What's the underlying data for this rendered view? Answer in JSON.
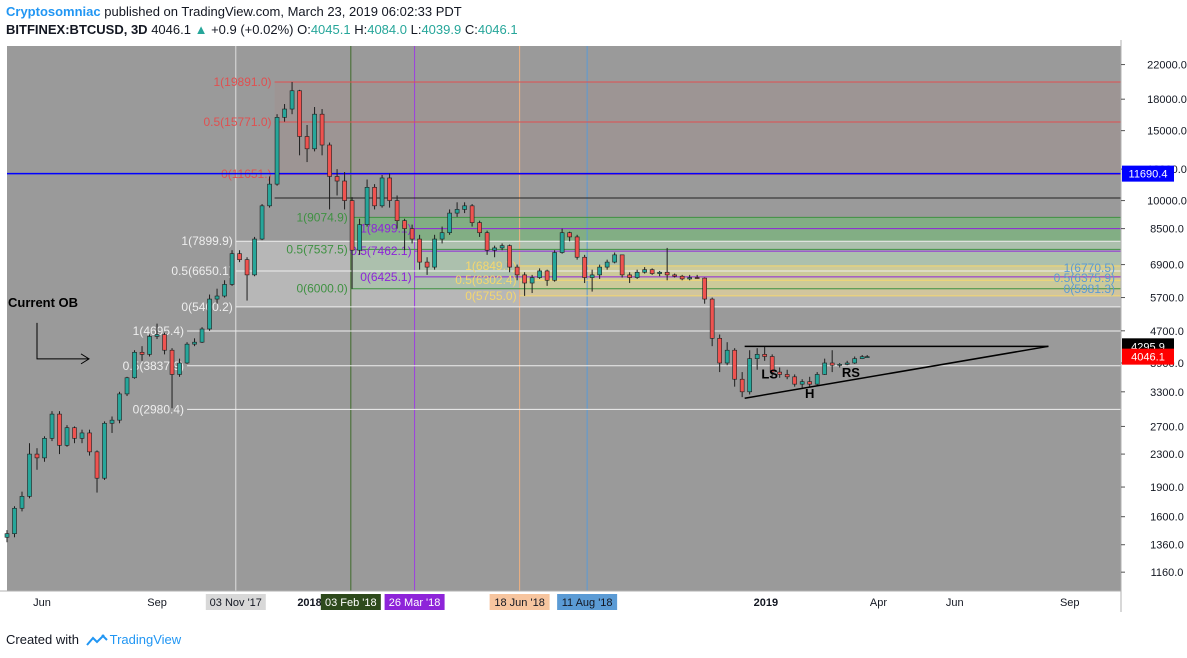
{
  "header": {
    "author": "Cryptosomniac",
    "published_text": "published on TradingView.com, March 23, 2019 06:02:33 PDT",
    "symbol": "BITFINEX:BTCUSD, 3D",
    "last": "4046.1",
    "change_arrow": "▲",
    "change": "+0.9 (+0.02%)",
    "o_label": "O:",
    "o_value": "4045.1",
    "h_label": "H:",
    "h_value": "4084.0",
    "l_label": "L:",
    "l_value": "4039.9",
    "c_label": "C:",
    "c_value": "4046.1"
  },
  "footer": {
    "created_with": "Created with",
    "brand": "TradingView"
  },
  "colors": {
    "pane_bg": "#9a9a9a",
    "axis_bg": "#ffffff",
    "up": "#26a69a",
    "down": "#ef5350",
    "fib_red": "#e05050",
    "fib_green": "#3f9142",
    "fib_purple": "#8e24d9",
    "fib_yellow": "#f5d76e",
    "fib_blue": "#5b9bd5",
    "fib_white": "#eeeeee",
    "blue_line": "#0000ff"
  },
  "chart_data": {
    "type": "candlestick",
    "y_scale": "log",
    "ylim": [
      1040,
      24500
    ],
    "y_ticks": [
      "22000.0",
      "18000.0",
      "15000.0",
      "12000.0",
      "10000.0",
      "8500.0",
      "6900.0",
      "5700.0",
      "4700.0",
      "3900.0",
      "3300.0",
      "2700.0",
      "2300.0",
      "1900.0",
      "1600.0",
      "1360.0",
      "1160.0"
    ],
    "x_range": [
      "2017-05-04",
      "2019-10-12"
    ],
    "x_ticks": [
      {
        "label": "Jun",
        "date": "2017-06-01"
      },
      {
        "label": "Sep",
        "date": "2017-09-01"
      },
      {
        "label": "2018",
        "date": "2018-01-01"
      },
      {
        "label": "p",
        "date": "2018-09-01"
      },
      {
        "label": "2019",
        "date": "2019-01-01"
      },
      {
        "label": "Apr",
        "date": "2019-04-01"
      },
      {
        "label": "Jun",
        "date": "2019-06-01"
      },
      {
        "label": "Sep",
        "date": "2019-09-01"
      }
    ],
    "date_markers": [
      {
        "label": "03 Nov '17",
        "date": "2017-11-03",
        "bg": "#d8d8d8",
        "fg": "#131722",
        "line": "#e0e0e0"
      },
      {
        "label": "03 Feb '18",
        "date": "2018-02-03",
        "bg": "#2e4a1c",
        "fg": "#ffffff",
        "line": "#3f6b2a"
      },
      {
        "label": "26 Mar '18",
        "date": "2018-03-26",
        "bg": "#8e24d9",
        "fg": "#ffffff",
        "line": "#9c3de0"
      },
      {
        "label": "18 Jun '18",
        "date": "2018-06-18",
        "bg": "#f7c59f",
        "fg": "#131722",
        "line": "#f0b080"
      },
      {
        "label": "11 Aug '18",
        "date": "2018-08-11",
        "bg": "#5b9bd5",
        "fg": "#131722",
        "line": "#5b9bd5"
      }
    ],
    "price_tags": [
      {
        "value": 11690.4,
        "label": "11690.4",
        "bg": "#0000ff",
        "fg": "#ffffff"
      },
      {
        "value": 4295.9,
        "label": "4295.9",
        "bg": "#000000",
        "fg": "#ffffff"
      },
      {
        "value": 4046.1,
        "label": "4046.1",
        "bg": "#ff0000",
        "fg": "#ffffff"
      }
    ],
    "fib_sets": [
      {
        "color_key": "fib_red",
        "start": "2017-12-04",
        "end": "2019-10-12",
        "fill": "",
        "levels": [
          {
            "label": "1(19891.0)",
            "value": 19891.0
          },
          {
            "label": "0.5(15771.0)",
            "value": 15771.0
          },
          {
            "label": "0(11651.)",
            "value": 11651.0
          }
        ]
      },
      {
        "color_key": "fib_green",
        "start": "2018-02-03",
        "end": "2019-10-12",
        "fill": "#6fbf73",
        "levels": [
          {
            "label": "1(9074.9)",
            "value": 9074.9
          },
          {
            "label": "0.5(7537.5)",
            "value": 7537.5
          },
          {
            "label": "0(6000.0)",
            "value": 6000.0
          }
        ]
      },
      {
        "color_key": "fib_white",
        "start": "2017-11-03",
        "end": "2019-10-12",
        "fill": "#cfcfcf",
        "levels": [
          {
            "label": "1(7899.9)",
            "value": 7899.9
          },
          {
            "label": "0.5(6650.1)",
            "value": 6650.1
          },
          {
            "label": "0(5400.2)",
            "value": 5400.2
          }
        ]
      },
      {
        "color_key": "fib_purple",
        "start": "2018-03-26",
        "end": "2019-10-12",
        "fill": "",
        "levels": [
          {
            "label": "1(8499.1)",
            "value": 8499.1
          },
          {
            "label": "0.5(7462.1)",
            "value": 7462.1
          },
          {
            "label": "0(6425.1)",
            "value": 6425.1
          }
        ]
      },
      {
        "color_key": "fib_yellow",
        "start": "2018-06-18",
        "end": "2019-10-12",
        "fill": "#e8d28a",
        "levels": [
          {
            "label": "1(6849.7)",
            "value": 6849.7
          },
          {
            "label": "0.5(6302.4)",
            "value": 6302.4
          },
          {
            "label": "0(5755.0)",
            "value": 5755.0
          }
        ]
      },
      {
        "color_key": "fib_white",
        "start": "2017-09-25",
        "end": "2019-10-12",
        "fill": "",
        "levels": [
          {
            "label": "1(4695.4)",
            "value": 4695.4
          },
          {
            "label": "0.5(3837.9)",
            "value": 3837.9
          },
          {
            "label": "0(2980.4)",
            "value": 2980.4
          }
        ]
      }
    ],
    "right_fib_labels": [
      {
        "label": "1(6770.5)",
        "value": 6770.5
      },
      {
        "label": "0.5(6375.9)",
        "value": 6375.9
      },
      {
        "label": "0(5981.3)",
        "value": 5981.3
      }
    ],
    "annotations": [
      {
        "text": "Current OB",
        "date": "2017-05-04",
        "value": 5400
      },
      {
        "text": "LS",
        "date": "2019-01-04",
        "value": 3560
      },
      {
        "text": "H",
        "date": "2019-02-05",
        "value": 3180
      },
      {
        "text": "RS",
        "date": "2019-03-10",
        "value": 3600
      }
    ],
    "trendlines": [
      {
        "from": [
          "2018-12-15",
          4295.9
        ],
        "to": [
          "2019-08-15",
          4295.9
        ]
      },
      {
        "from": [
          "2018-12-15",
          3180
        ],
        "to": [
          "2019-08-15",
          4295.9
        ]
      }
    ],
    "ohlc": [
      [
        "2017-05-04",
        1420,
        1480,
        1380,
        1450
      ],
      [
        "2017-05-10",
        1450,
        1700,
        1420,
        1680
      ],
      [
        "2017-05-16",
        1680,
        1850,
        1650,
        1800
      ],
      [
        "2017-05-22",
        1800,
        2450,
        1780,
        2300
      ],
      [
        "2017-05-28",
        2300,
        2380,
        2100,
        2250
      ],
      [
        "2017-06-03",
        2250,
        2550,
        2200,
        2520
      ],
      [
        "2017-06-09",
        2520,
        2950,
        2480,
        2900
      ],
      [
        "2017-06-15",
        2900,
        2950,
        2300,
        2420
      ],
      [
        "2017-06-21",
        2420,
        2720,
        2400,
        2680
      ],
      [
        "2017-06-27",
        2680,
        2700,
        2450,
        2520
      ],
      [
        "2017-07-03",
        2520,
        2650,
        2450,
        2600
      ],
      [
        "2017-07-09",
        2600,
        2650,
        2280,
        2330
      ],
      [
        "2017-07-15",
        2330,
        2350,
        1840,
        2000
      ],
      [
        "2017-07-21",
        2000,
        2780,
        1980,
        2750
      ],
      [
        "2017-07-27",
        2750,
        2860,
        2600,
        2800
      ],
      [
        "2017-08-02",
        2800,
        3300,
        2750,
        3260
      ],
      [
        "2017-08-08",
        3260,
        3600,
        3220,
        3580
      ],
      [
        "2017-08-14",
        3580,
        4200,
        3560,
        4150
      ],
      [
        "2017-08-20",
        4150,
        4300,
        3950,
        4100
      ],
      [
        "2017-08-26",
        4100,
        4600,
        4050,
        4550
      ],
      [
        "2017-09-01",
        4550,
        4900,
        4480,
        4600
      ],
      [
        "2017-09-07",
        4600,
        4650,
        4100,
        4200
      ],
      [
        "2017-09-13",
        4200,
        4250,
        3000,
        3650
      ],
      [
        "2017-09-19",
        3650,
        4000,
        3600,
        3900
      ],
      [
        "2017-09-25",
        3900,
        4400,
        3880,
        4350
      ],
      [
        "2017-10-01",
        4350,
        4500,
        4300,
        4400
      ],
      [
        "2017-10-07",
        4400,
        4800,
        4380,
        4750
      ],
      [
        "2017-10-13",
        4750,
        5800,
        4700,
        5650
      ],
      [
        "2017-10-19",
        5650,
        6000,
        5500,
        5750
      ],
      [
        "2017-10-25",
        5750,
        6300,
        5700,
        6150
      ],
      [
        "2017-10-31",
        6150,
        7500,
        6100,
        7350
      ],
      [
        "2017-11-06",
        7350,
        7500,
        7000,
        7100
      ],
      [
        "2017-11-12",
        7100,
        7200,
        5600,
        6500
      ],
      [
        "2017-11-18",
        6500,
        8100,
        6450,
        8000
      ],
      [
        "2017-11-24",
        8000,
        9800,
        7950,
        9700
      ],
      [
        "2017-11-30",
        9700,
        11500,
        9600,
        11000
      ],
      [
        "2017-12-06",
        11000,
        16500,
        10900,
        16200
      ],
      [
        "2017-12-12",
        16200,
        17500,
        15800,
        17000
      ],
      [
        "2017-12-18",
        17000,
        19891,
        16500,
        18900
      ],
      [
        "2017-12-24",
        18900,
        19000,
        13000,
        14500
      ],
      [
        "2017-12-30",
        14500,
        15500,
        12500,
        13500
      ],
      [
        "2018-01-05",
        13500,
        17200,
        13300,
        16500
      ],
      [
        "2018-01-11",
        16500,
        17000,
        13000,
        13800
      ],
      [
        "2018-01-17",
        13800,
        14000,
        9500,
        11500
      ],
      [
        "2018-01-23",
        11500,
        12000,
        10300,
        11200
      ],
      [
        "2018-01-29",
        11200,
        11800,
        9500,
        10000
      ],
      [
        "2018-02-04",
        10000,
        10200,
        6000,
        7500
      ],
      [
        "2018-02-10",
        7500,
        9000,
        7300,
        8700
      ],
      [
        "2018-02-16",
        8700,
        11300,
        8600,
        10800
      ],
      [
        "2018-02-22",
        10800,
        11000,
        9500,
        9700
      ],
      [
        "2018-02-28",
        9700,
        11600,
        9600,
        11400
      ],
      [
        "2018-03-06",
        11400,
        11700,
        9600,
        10000
      ],
      [
        "2018-03-12",
        10000,
        10300,
        8500,
        8900
      ],
      [
        "2018-03-18",
        8900,
        9000,
        7500,
        8500
      ],
      [
        "2018-03-24",
        8500,
        8700,
        7800,
        8000
      ],
      [
        "2018-03-30",
        8000,
        8200,
        6700,
        7000
      ],
      [
        "2018-04-05",
        7000,
        7200,
        6500,
        6800
      ],
      [
        "2018-04-11",
        6800,
        8200,
        6700,
        8000
      ],
      [
        "2018-04-17",
        8000,
        8600,
        7800,
        8300
      ],
      [
        "2018-04-23",
        8300,
        9500,
        8200,
        9300
      ],
      [
        "2018-04-29",
        9300,
        9900,
        9100,
        9500
      ],
      [
        "2018-05-05",
        9500,
        9900,
        9300,
        9700
      ],
      [
        "2018-05-11",
        9700,
        9800,
        8600,
        8800
      ],
      [
        "2018-05-17",
        8800,
        8900,
        8100,
        8300
      ],
      [
        "2018-05-23",
        8300,
        8400,
        7300,
        7500
      ],
      [
        "2018-05-29",
        7500,
        7700,
        7200,
        7600
      ],
      [
        "2018-06-04",
        7600,
        7800,
        7500,
        7700
      ],
      [
        "2018-06-10",
        7700,
        7750,
        6600,
        6800
      ],
      [
        "2018-06-16",
        6800,
        6900,
        6300,
        6500
      ],
      [
        "2018-06-22",
        6500,
        6600,
        5755,
        6200
      ],
      [
        "2018-06-28",
        6200,
        6500,
        5850,
        6400
      ],
      [
        "2018-07-04",
        6400,
        6750,
        6350,
        6650
      ],
      [
        "2018-07-10",
        6650,
        6700,
        6100,
        6300
      ],
      [
        "2018-07-16",
        6300,
        7500,
        6250,
        7400
      ],
      [
        "2018-07-22",
        7400,
        8500,
        7350,
        8300
      ],
      [
        "2018-07-28",
        8300,
        8350,
        7900,
        8100
      ],
      [
        "2018-08-03",
        8100,
        8200,
        7100,
        7200
      ],
      [
        "2018-08-09",
        7200,
        7300,
        6200,
        6400
      ],
      [
        "2018-08-15",
        6400,
        6700,
        5900,
        6500
      ],
      [
        "2018-08-21",
        6500,
        6900,
        6350,
        6800
      ],
      [
        "2018-08-27",
        6800,
        7100,
        6700,
        7000
      ],
      [
        "2018-09-02",
        7000,
        7400,
        6950,
        7300
      ],
      [
        "2018-09-08",
        7300,
        7300,
        6400,
        6500
      ],
      [
        "2018-09-14",
        6500,
        6600,
        6200,
        6400
      ],
      [
        "2018-09-20",
        6400,
        6700,
        6350,
        6600
      ],
      [
        "2018-09-26",
        6600,
        6800,
        6550,
        6700
      ],
      [
        "2018-10-02",
        6700,
        6750,
        6500,
        6550
      ],
      [
        "2018-10-08",
        6550,
        6650,
        6450,
        6600
      ],
      [
        "2018-10-14",
        6600,
        7600,
        6300,
        6500
      ],
      [
        "2018-10-20",
        6500,
        6550,
        6400,
        6450
      ],
      [
        "2018-10-26",
        6450,
        6500,
        6300,
        6350
      ],
      [
        "2018-11-01",
        6350,
        6500,
        6300,
        6400
      ],
      [
        "2018-11-07",
        6400,
        6500,
        6350,
        6380
      ],
      [
        "2018-11-13",
        6380,
        6400,
        5500,
        5650
      ],
      [
        "2018-11-19",
        5650,
        5700,
        4300,
        4500
      ],
      [
        "2018-11-25",
        4500,
        4600,
        3700,
        3900
      ],
      [
        "2018-12-01",
        3900,
        4400,
        3850,
        4200
      ],
      [
        "2018-12-07",
        4200,
        4250,
        3400,
        3550
      ],
      [
        "2018-12-13",
        3550,
        3700,
        3200,
        3300
      ],
      [
        "2018-12-19",
        3300,
        4200,
        3250,
        4000
      ],
      [
        "2018-12-25",
        4000,
        4250,
        3750,
        4100
      ],
      [
        "2018-12-31",
        4100,
        4300,
        3950,
        4050
      ],
      [
        "2019-01-06",
        4050,
        4100,
        3600,
        3700
      ],
      [
        "2019-01-12",
        3700,
        3800,
        3580,
        3650
      ],
      [
        "2019-01-18",
        3650,
        3750,
        3550,
        3600
      ],
      [
        "2019-01-24",
        3600,
        3650,
        3400,
        3450
      ],
      [
        "2019-01-30",
        3450,
        3550,
        3380,
        3500
      ],
      [
        "2019-02-05",
        3500,
        3600,
        3400,
        3450
      ],
      [
        "2019-02-11",
        3450,
        3700,
        3420,
        3650
      ],
      [
        "2019-02-17",
        3650,
        4000,
        3640,
        3900
      ],
      [
        "2019-02-23",
        3900,
        4200,
        3700,
        3850
      ],
      [
        "2019-03-01",
        3850,
        3900,
        3800,
        3870
      ],
      [
        "2019-03-07",
        3870,
        3950,
        3850,
        3900
      ],
      [
        "2019-03-13",
        3900,
        4050,
        3880,
        4000
      ],
      [
        "2019-03-19",
        4000,
        4084,
        3990,
        4045
      ],
      [
        "2019-03-23",
        4045.1,
        4084.0,
        4039.9,
        4046.1
      ]
    ]
  }
}
